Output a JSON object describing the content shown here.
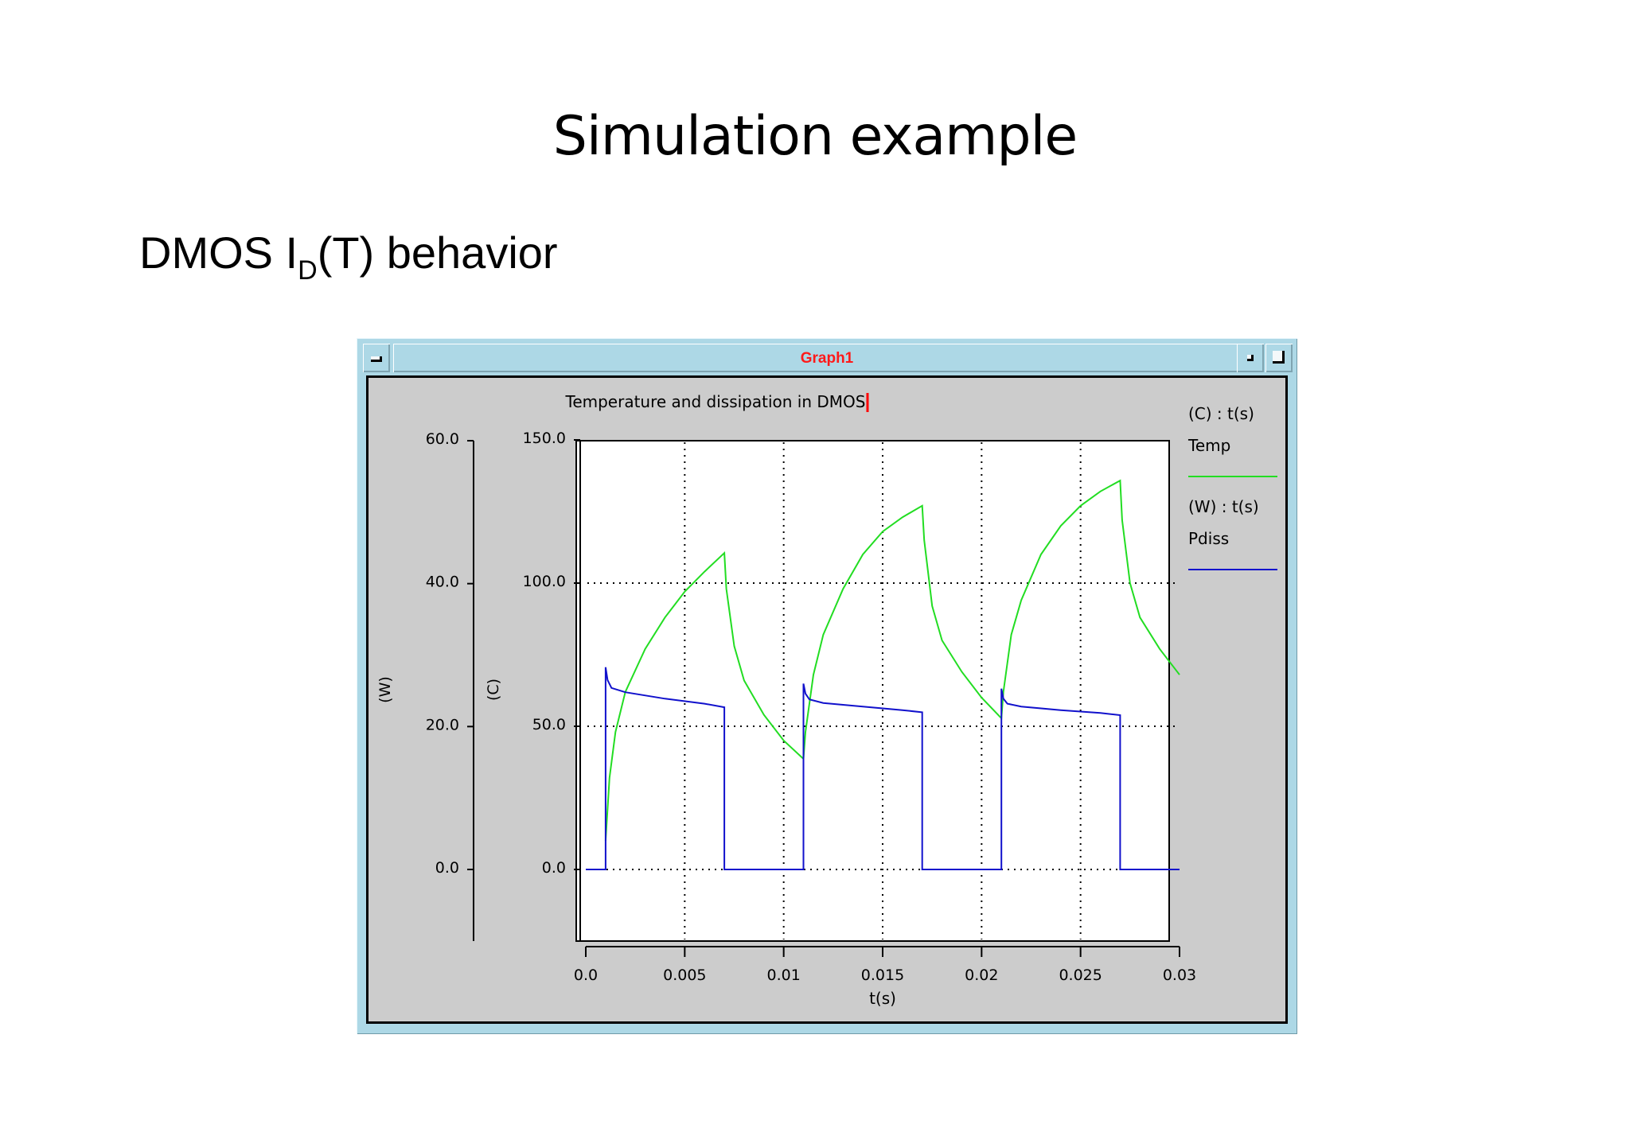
{
  "slide": {
    "title": "Simulation example",
    "subtitle_prefix": "DMOS I",
    "subtitle_sub": "D",
    "subtitle_suffix": "(T) behavior"
  },
  "window": {
    "title": "Graph1",
    "title_color": "#ff0000",
    "frame_color": "#add8e6",
    "buttons": [
      "window-menu",
      "minimize",
      "maximize"
    ]
  },
  "chart_data": {
    "type": "line",
    "title": "Temperature and dissipation in DMOS",
    "xlabel": "t(s)",
    "xlim": [
      0,
      0.03
    ],
    "x_ticks": [
      "0.0",
      "0.005",
      "0.01",
      "0.015",
      "0.02",
      "0.025",
      "0.03"
    ],
    "grid": true,
    "legend_position": "right",
    "axes": [
      {
        "id": "W",
        "label": "(W)",
        "ylim": [
          -8,
          60
        ],
        "ticks": [
          "60.0",
          "40.0",
          "20.0",
          "0.0"
        ]
      },
      {
        "id": "C",
        "label": "(C)",
        "ylim": [
          -20,
          150
        ],
        "ticks": [
          "150.0",
          "100.0",
          "50.0",
          "0.0"
        ]
      }
    ],
    "legend": [
      {
        "axis_label": "(C) : t(s)",
        "name": "Temp",
        "color": "#22dd22"
      },
      {
        "axis_label": "(W) : t(s)",
        "name": "Pdiss",
        "color": "#1111cc"
      }
    ],
    "series": [
      {
        "name": "Temp",
        "axis": "C",
        "color": "#22dd22",
        "x": [
          0.001,
          0.0012,
          0.0015,
          0.002,
          0.003,
          0.004,
          0.005,
          0.006,
          0.007,
          0.0071,
          0.0075,
          0.008,
          0.009,
          0.01,
          0.011,
          0.0111,
          0.0115,
          0.012,
          0.013,
          0.014,
          0.015,
          0.016,
          0.017,
          0.0171,
          0.0175,
          0.018,
          0.019,
          0.02,
          0.021,
          0.0211,
          0.0215,
          0.022,
          0.023,
          0.024,
          0.025,
          0.026,
          0.027,
          0.0271,
          0.0275,
          0.028,
          0.029,
          0.03
        ],
        "values": [
          10,
          32,
          48,
          62,
          77,
          88,
          97,
          104,
          110.5,
          98,
          78,
          66,
          54,
          45,
          38.6,
          48,
          68,
          82,
          98,
          110,
          118,
          123,
          127,
          115,
          92,
          80,
          69,
          60,
          52.8,
          62,
          82,
          94,
          110,
          120,
          127,
          132,
          135.8,
          122,
          100,
          88,
          77,
          68
        ]
      },
      {
        "name": "Pdiss",
        "axis": "W",
        "color": "#1111cc",
        "x": [
          0,
          0.001,
          0.001,
          0.0011,
          0.0013,
          0.002,
          0.004,
          0.006,
          0.007,
          0.007,
          0.011,
          0.011,
          0.0111,
          0.0113,
          0.012,
          0.014,
          0.016,
          0.017,
          0.017,
          0.021,
          0.021,
          0.0211,
          0.0213,
          0.022,
          0.024,
          0.026,
          0.027,
          0.027,
          0.03
        ],
        "values": [
          0,
          0,
          28.3,
          26.5,
          25.4,
          24.8,
          23.9,
          23.2,
          22.7,
          0,
          0,
          26.0,
          24.6,
          23.8,
          23.3,
          22.8,
          22.3,
          22.0,
          0,
          0,
          25.3,
          23.9,
          23.2,
          22.8,
          22.3,
          21.9,
          21.6,
          0,
          0
        ]
      }
    ]
  }
}
